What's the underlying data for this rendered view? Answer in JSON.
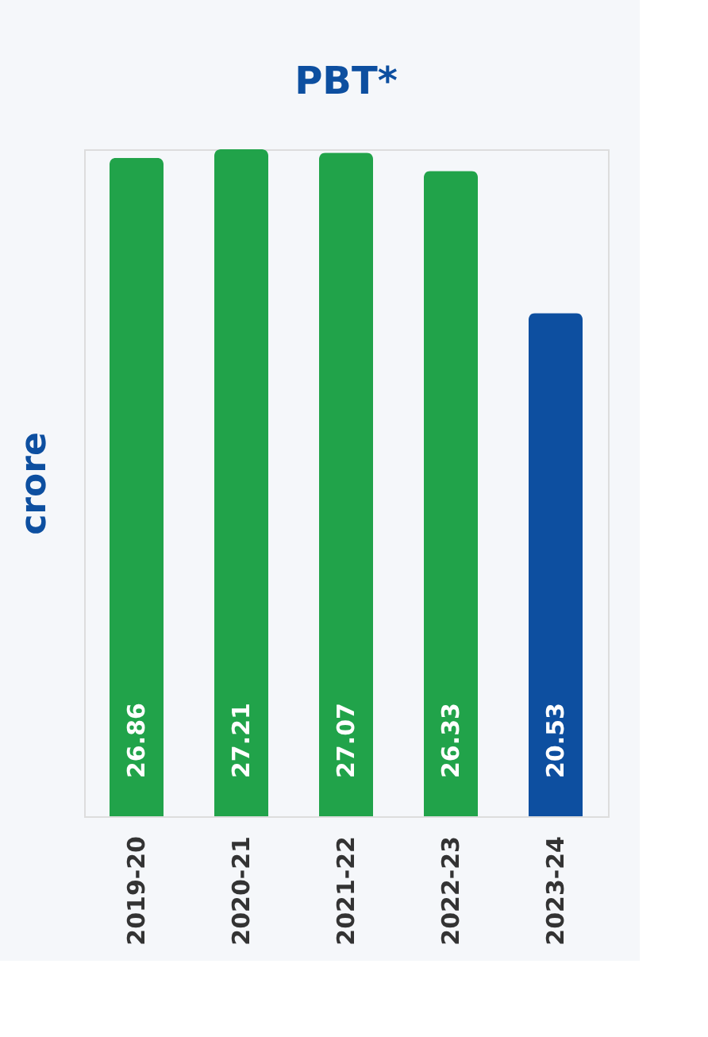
{
  "chart_data": {
    "type": "bar",
    "title": "PBT*",
    "ylabel": "crore",
    "categories": [
      "2019-20",
      "2020-21",
      "2021-22",
      "2022-23",
      "2023-24"
    ],
    "values": [
      26.86,
      27.21,
      27.07,
      26.33,
      20.53
    ],
    "colors": [
      "#21a34a",
      "#21a34a",
      "#21a34a",
      "#21a34a",
      "#0d4fa0"
    ],
    "data_labels": true,
    "grid": false
  }
}
